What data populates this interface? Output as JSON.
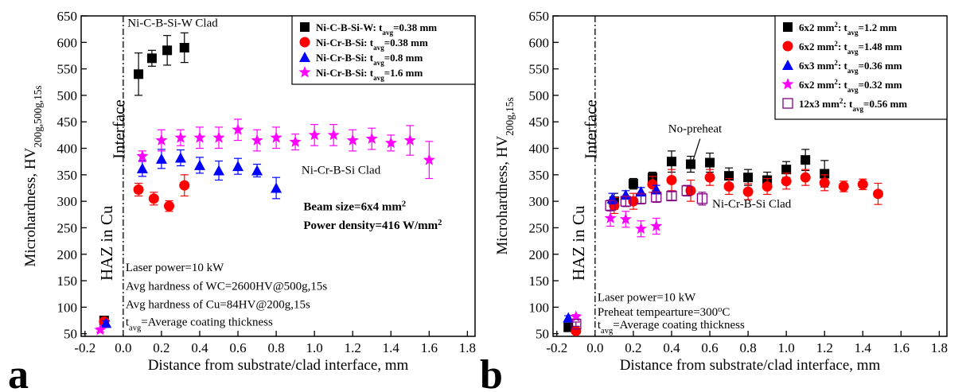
{
  "chart_data": [
    {
      "type": "scatter",
      "panel_label": "a",
      "x_label": "Distance from substrate/clad interface, mm",
      "y_label": [
        "Microhardness, HV",
        {
          "sub": "200g,500g,15s"
        }
      ],
      "xlim": [
        -0.22,
        1.84
      ],
      "ylim": [
        45,
        650
      ],
      "xticks": [
        -0.2,
        {
          "value": 0,
          "label": "0.0"
        },
        0.2,
        0.4,
        0.6,
        0.8,
        {
          "value": 1,
          "label": "1.0"
        },
        1.2,
        1.4,
        1.6,
        1.8
      ],
      "yticks": [
        50,
        100,
        150,
        200,
        250,
        300,
        350,
        400,
        450,
        500,
        550,
        600,
        650
      ],
      "vline": 0,
      "legend": "upper right",
      "series": [
        {
          "name": [
            "Ni-C-B-Si-W: t",
            {
              "sub": "avg"
            },
            "=0.38 mm"
          ],
          "color": "#000000",
          "marker": "square",
          "x": [
            -0.1,
            0.08,
            0.15,
            0.23,
            0.32
          ],
          "values": [
            75,
            540,
            570,
            585,
            590
          ],
          "errors": [
            5,
            40,
            15,
            28,
            28
          ]
        },
        {
          "name": [
            "Ni-Cr-B-Si: t",
            {
              "sub": "avg"
            },
            "=0.38 mm"
          ],
          "color": "#ff0000",
          "marker": "circle",
          "x": [
            -0.1,
            0.08,
            0.16,
            0.24,
            0.32
          ],
          "values": [
            73,
            322,
            305,
            291,
            330
          ],
          "errors": [
            4,
            12,
            12,
            10,
            20
          ]
        },
        {
          "name": [
            "Ni-Cr-B-Si: t",
            {
              "sub": "avg"
            },
            "=0.8 mm"
          ],
          "color": "#0000ff",
          "marker": "triangle",
          "x": [
            -0.09,
            0.1,
            0.2,
            0.3,
            0.4,
            0.5,
            0.6,
            0.7,
            0.8
          ],
          "values": [
            70,
            362,
            380,
            382,
            368,
            358,
            366,
            358,
            325
          ],
          "errors": [
            4,
            15,
            18,
            15,
            15,
            18,
            15,
            12,
            20
          ]
        },
        {
          "name": [
            "Ni-Cr-B-Si: t",
            {
              "sub": "avg"
            },
            "=1.6 mm"
          ],
          "color": "#ff00ff",
          "marker": "star",
          "x": [
            -0.12,
            0.1,
            0.2,
            0.3,
            0.4,
            0.5,
            0.6,
            0.7,
            0.8,
            0.9,
            1.0,
            1.1,
            1.2,
            1.3,
            1.4,
            1.5,
            1.6
          ],
          "values": [
            57,
            385,
            415,
            420,
            420,
            420,
            435,
            415,
            420,
            412,
            425,
            425,
            415,
            418,
            410,
            415,
            378
          ],
          "errors": [
            4,
            10,
            20,
            15,
            20,
            20,
            20,
            20,
            20,
            15,
            20,
            20,
            20,
            20,
            15,
            28,
            35
          ]
        }
      ],
      "annotations": [
        [
          "Ni-C-B-Si-W Clad"
        ],
        [
          "Interface"
        ],
        [
          "Ni-Cr-B-Si Clad"
        ],
        [
          "Beam size=6x4 mm",
          {
            "sup": "2"
          }
        ],
        [
          "Power density=416 W/mm",
          {
            "sup": "2"
          }
        ],
        [
          "HAZ in Cu"
        ],
        [
          "Laser power=10 kW"
        ],
        [
          "Avg hardness of WC=2600HV@500g,15s"
        ],
        [
          "Avg hardness of Cu=84HV@200g,15s"
        ],
        [
          "t",
          {
            "sub": "avg"
          },
          "=Average coating thickness"
        ]
      ]
    },
    {
      "type": "scatter",
      "panel_label": "b",
      "x_label": "Distance from substrate/clad interface, mm",
      "y_label": [
        "Microhardness, HV",
        {
          "sub": "200g,15s"
        }
      ],
      "xlim": [
        -0.22,
        1.84
      ],
      "ylim": [
        45,
        650
      ],
      "xticks": [
        -0.2,
        {
          "value": 0,
          "label": "0.0"
        },
        0.2,
        0.4,
        0.6,
        0.8,
        {
          "value": 1,
          "label": "1.0"
        },
        1.2,
        1.4,
        1.6,
        1.8
      ],
      "yticks": [
        50,
        100,
        150,
        200,
        250,
        300,
        350,
        400,
        450,
        500,
        550,
        600,
        650
      ],
      "vline": 0,
      "legend": "upper right",
      "series": [
        {
          "name": [
            "6x2 mm",
            {
              "sup": "2"
            },
            ": t",
            {
              "sub": "avg"
            },
            "=1.2 mm"
          ],
          "color": "#000000",
          "marker": "square",
          "x": [
            -0.14,
            0.1,
            0.2,
            0.3,
            0.4,
            0.5,
            0.6,
            0.7,
            0.8,
            0.9,
            1.0,
            1.1,
            1.2
          ],
          "values": [
            62,
            300,
            333,
            345,
            375,
            370,
            373,
            348,
            345,
            340,
            360,
            378,
            352
          ],
          "errors": [
            4,
            15,
            10,
            10,
            20,
            15,
            18,
            15,
            15,
            15,
            15,
            20,
            25
          ]
        },
        {
          "name": [
            "6x2 mm",
            {
              "sup": "2"
            },
            ": t",
            {
              "sub": "avg"
            },
            "=1.48 mm"
          ],
          "color": "#ff0000",
          "marker": "circle",
          "x": [
            -0.1,
            0.1,
            0.2,
            0.3,
            0.4,
            0.5,
            0.6,
            0.7,
            0.8,
            0.9,
            1.0,
            1.1,
            1.2,
            1.3,
            1.4,
            1.48
          ],
          "values": [
            55,
            292,
            300,
            332,
            340,
            320,
            345,
            328,
            318,
            328,
            338,
            345,
            335,
            328,
            332,
            314
          ],
          "errors": [
            4,
            15,
            15,
            15,
            20,
            20,
            15,
            15,
            15,
            15,
            15,
            15,
            15,
            10,
            10,
            20
          ]
        },
        {
          "name": [
            "6x3 mm",
            {
              "sup": "2"
            },
            ": t",
            {
              "sub": "avg"
            },
            "=0.36 mm"
          ],
          "color": "#0000ff",
          "marker": "triangle",
          "x": [
            -0.14,
            0.09,
            0.16,
            0.24,
            0.32
          ],
          "values": [
            80,
            305,
            312,
            318,
            322
          ],
          "errors": [
            4,
            10,
            8,
            8,
            8
          ]
        },
        {
          "name": [
            "6x2 mm",
            {
              "sup": "2"
            },
            ": t",
            {
              "sub": "avg"
            },
            "=0.32 mm"
          ],
          "color": "#ff00ff",
          "marker": "star",
          "x": [
            -0.1,
            0.08,
            0.16,
            0.24,
            0.32
          ],
          "values": [
            82,
            268,
            266,
            248,
            253
          ],
          "errors": [
            4,
            15,
            15,
            15,
            15
          ]
        },
        {
          "name": [
            "12x3 mm",
            {
              "sup": "2"
            },
            ": t",
            {
              "sub": "avg"
            },
            "=0.56 mm"
          ],
          "color": "#800080",
          "marker": "open-square",
          "x": [
            -0.1,
            0.08,
            0.16,
            0.24,
            0.32,
            0.4,
            0.48,
            0.56
          ],
          "values": [
            68,
            292,
            300,
            305,
            308,
            310,
            320,
            305
          ],
          "errors": [
            4,
            10,
            10,
            10,
            10,
            8,
            10,
            12
          ]
        }
      ],
      "annotations": [
        [
          "No-preheat"
        ],
        [
          "Interface"
        ],
        [
          "Ni-Cr-B-Si Clad"
        ],
        [
          "HAZ in Cu"
        ],
        [
          "Laser power=10 kW"
        ],
        [
          "Preheat tempearture=300",
          {
            "sup": "o"
          },
          "C"
        ],
        [
          "t",
          {
            "sub": "avg"
          },
          "=Average coating thickness"
        ]
      ]
    }
  ]
}
